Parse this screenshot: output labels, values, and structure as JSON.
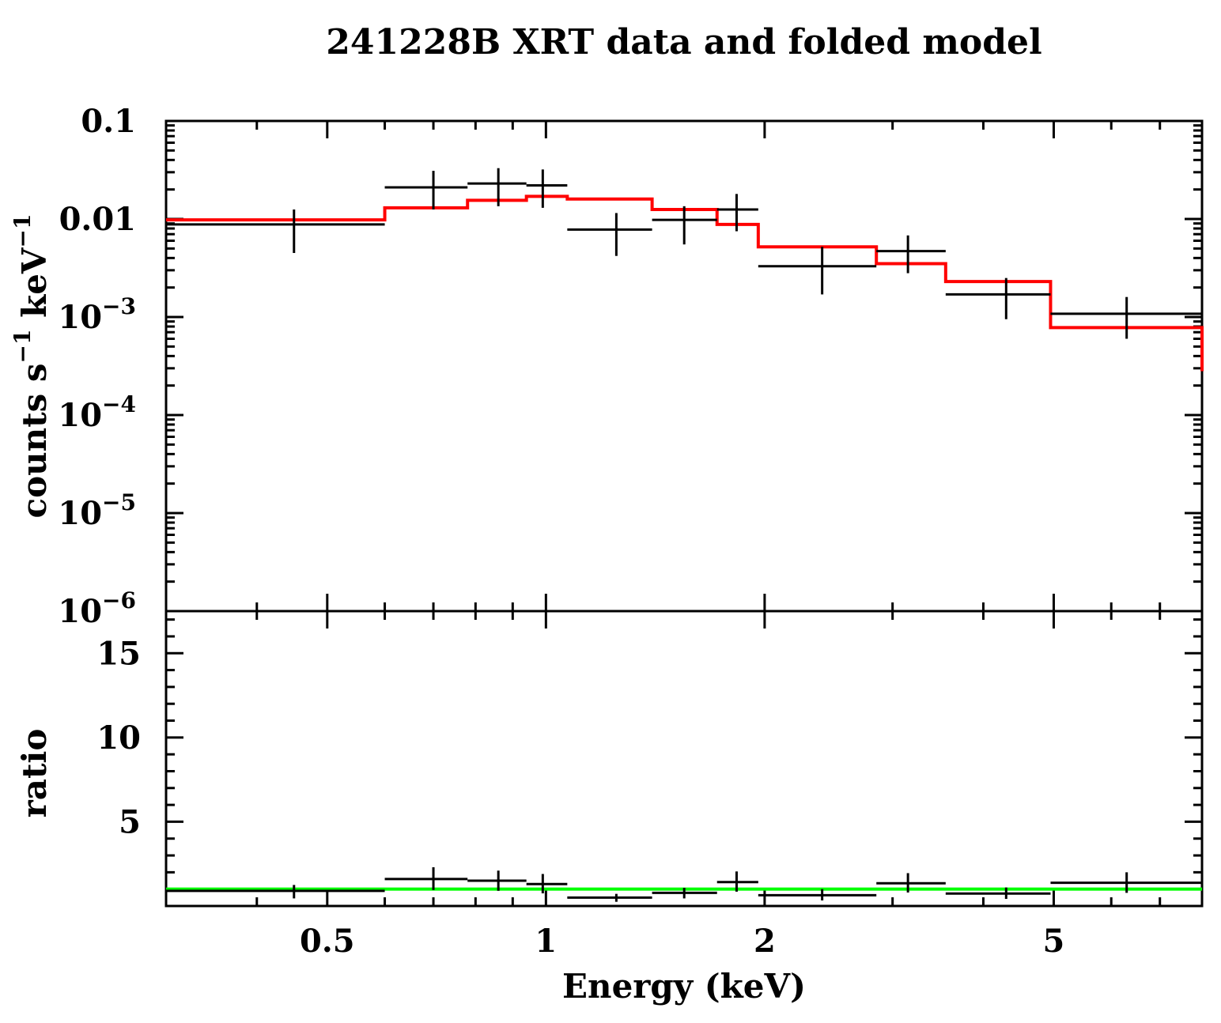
{
  "chart_data": {
    "type": "scatter",
    "title": "241228B XRT data and folded model",
    "xlabel": "Energy (keV)",
    "xscale": "log",
    "xlim": [
      0.3,
      8.0
    ],
    "xticks": [
      {
        "value": 0.5,
        "label": "0.5"
      },
      {
        "value": 1,
        "label": "1"
      },
      {
        "value": 2,
        "label": "2"
      },
      {
        "value": 5,
        "label": "5"
      }
    ],
    "panels": [
      {
        "name": "spectrum",
        "ylabel": {
          "base": "counts s",
          "exp1": "−1",
          "mid": " keV",
          "exp2": "−1"
        },
        "yscale": "log",
        "ylim": [
          1e-06,
          0.1
        ],
        "yticks": [
          {
            "value": 0.1,
            "label": "0.1",
            "base": "",
            "exp": ""
          },
          {
            "value": 0.01,
            "label": "0.01",
            "base": "",
            "exp": ""
          },
          {
            "value": 0.001,
            "label": "",
            "base": "10",
            "exp": "−3"
          },
          {
            "value": 0.0001,
            "label": "",
            "base": "10",
            "exp": "−4"
          },
          {
            "value": 1e-05,
            "label": "",
            "base": "10",
            "exp": "−5"
          },
          {
            "value": 1e-06,
            "label": "",
            "base": "10",
            "exp": "−6"
          }
        ],
        "series": [
          {
            "name": "data",
            "color": "#000000",
            "points": [
              {
                "x": 0.45,
                "xlo": 0.3,
                "xhi": 0.6,
                "y": 0.0088,
                "ylo": 0.0045,
                "yhi": 0.0125
              },
              {
                "x": 0.7,
                "xlo": 0.6,
                "xhi": 0.78,
                "y": 0.021,
                "ylo": 0.0125,
                "yhi": 0.031
              },
              {
                "x": 0.86,
                "xlo": 0.78,
                "xhi": 0.94,
                "y": 0.023,
                "ylo": 0.0135,
                "yhi": 0.033
              },
              {
                "x": 0.99,
                "xlo": 0.94,
                "xhi": 1.07,
                "y": 0.022,
                "ylo": 0.013,
                "yhi": 0.032
              },
              {
                "x": 1.25,
                "xlo": 1.07,
                "xhi": 1.4,
                "y": 0.0078,
                "ylo": 0.0042,
                "yhi": 0.0115
              },
              {
                "x": 1.55,
                "xlo": 1.4,
                "xhi": 1.72,
                "y": 0.0098,
                "ylo": 0.0055,
                "yhi": 0.0135
              },
              {
                "x": 1.83,
                "xlo": 1.72,
                "xhi": 1.96,
                "y": 0.0125,
                "ylo": 0.0075,
                "yhi": 0.018
              },
              {
                "x": 2.4,
                "xlo": 1.96,
                "xhi": 2.85,
                "y": 0.0033,
                "ylo": 0.0017,
                "yhi": 0.0052
              },
              {
                "x": 3.15,
                "xlo": 2.85,
                "xhi": 3.55,
                "y": 0.0047,
                "ylo": 0.0028,
                "yhi": 0.0068
              },
              {
                "x": 4.3,
                "xlo": 3.55,
                "xhi": 4.95,
                "y": 0.0017,
                "ylo": 0.00095,
                "yhi": 0.0025
              },
              {
                "x": 6.3,
                "xlo": 4.95,
                "xhi": 8.0,
                "y": 0.00108,
                "ylo": 0.0006,
                "yhi": 0.0016
              }
            ]
          },
          {
            "name": "folded model",
            "color": "#ff0000",
            "steps": [
              {
                "xlo": 0.3,
                "xhi": 0.6,
                "y": 0.0098
              },
              {
                "xlo": 0.6,
                "xhi": 0.78,
                "y": 0.013
              },
              {
                "xlo": 0.78,
                "xhi": 0.94,
                "y": 0.0155
              },
              {
                "xlo": 0.94,
                "xhi": 1.07,
                "y": 0.017
              },
              {
                "xlo": 1.07,
                "xhi": 1.4,
                "y": 0.016
              },
              {
                "xlo": 1.4,
                "xhi": 1.72,
                "y": 0.0125
              },
              {
                "xlo": 1.72,
                "xhi": 1.96,
                "y": 0.0088
              },
              {
                "xlo": 1.96,
                "xhi": 2.85,
                "y": 0.0052
              },
              {
                "xlo": 2.85,
                "xhi": 3.55,
                "y": 0.0035
              },
              {
                "xlo": 3.55,
                "xhi": 4.95,
                "y": 0.0023
              },
              {
                "xlo": 4.95,
                "xhi": 8.0,
                "y": 0.00078
              }
            ],
            "end_y": 0.00028
          }
        ]
      },
      {
        "name": "ratio",
        "ylabel": "ratio",
        "yscale": "linear",
        "ylim": [
          0,
          17.5
        ],
        "yticks": [
          {
            "value": 5,
            "label": "5"
          },
          {
            "value": 10,
            "label": "10"
          },
          {
            "value": 15,
            "label": "15"
          }
        ],
        "series": [
          {
            "name": "ratio data",
            "color": "#000000",
            "points": [
              {
                "x": 0.45,
                "xlo": 0.3,
                "xhi": 0.6,
                "y": 0.9,
                "ylo": 0.45,
                "yhi": 1.25
              },
              {
                "x": 0.7,
                "xlo": 0.6,
                "xhi": 0.78,
                "y": 1.6,
                "ylo": 0.95,
                "yhi": 2.3
              },
              {
                "x": 0.86,
                "xlo": 0.78,
                "xhi": 0.94,
                "y": 1.5,
                "ylo": 0.9,
                "yhi": 2.1
              },
              {
                "x": 0.99,
                "xlo": 0.94,
                "xhi": 1.07,
                "y": 1.3,
                "ylo": 0.75,
                "yhi": 1.9
              },
              {
                "x": 1.25,
                "xlo": 1.07,
                "xhi": 1.4,
                "y": 0.5,
                "ylo": 0.25,
                "yhi": 0.72
              },
              {
                "x": 1.55,
                "xlo": 1.4,
                "xhi": 1.72,
                "y": 0.78,
                "ylo": 0.45,
                "yhi": 1.08
              },
              {
                "x": 1.83,
                "xlo": 1.72,
                "xhi": 1.96,
                "y": 1.42,
                "ylo": 0.85,
                "yhi": 2.05
              },
              {
                "x": 2.4,
                "xlo": 1.96,
                "xhi": 2.85,
                "y": 0.64,
                "ylo": 0.33,
                "yhi": 1.0
              },
              {
                "x": 3.15,
                "xlo": 2.85,
                "xhi": 3.55,
                "y": 1.35,
                "ylo": 0.8,
                "yhi": 1.95
              },
              {
                "x": 4.3,
                "xlo": 3.55,
                "xhi": 4.95,
                "y": 0.74,
                "ylo": 0.42,
                "yhi": 1.1
              },
              {
                "x": 6.3,
                "xlo": 4.95,
                "xhi": 8.0,
                "y": 1.38,
                "ylo": 0.78,
                "yhi": 2.0
              }
            ]
          },
          {
            "name": "unity line",
            "color": "#00ff00",
            "y": 1.0
          }
        ]
      }
    ]
  }
}
